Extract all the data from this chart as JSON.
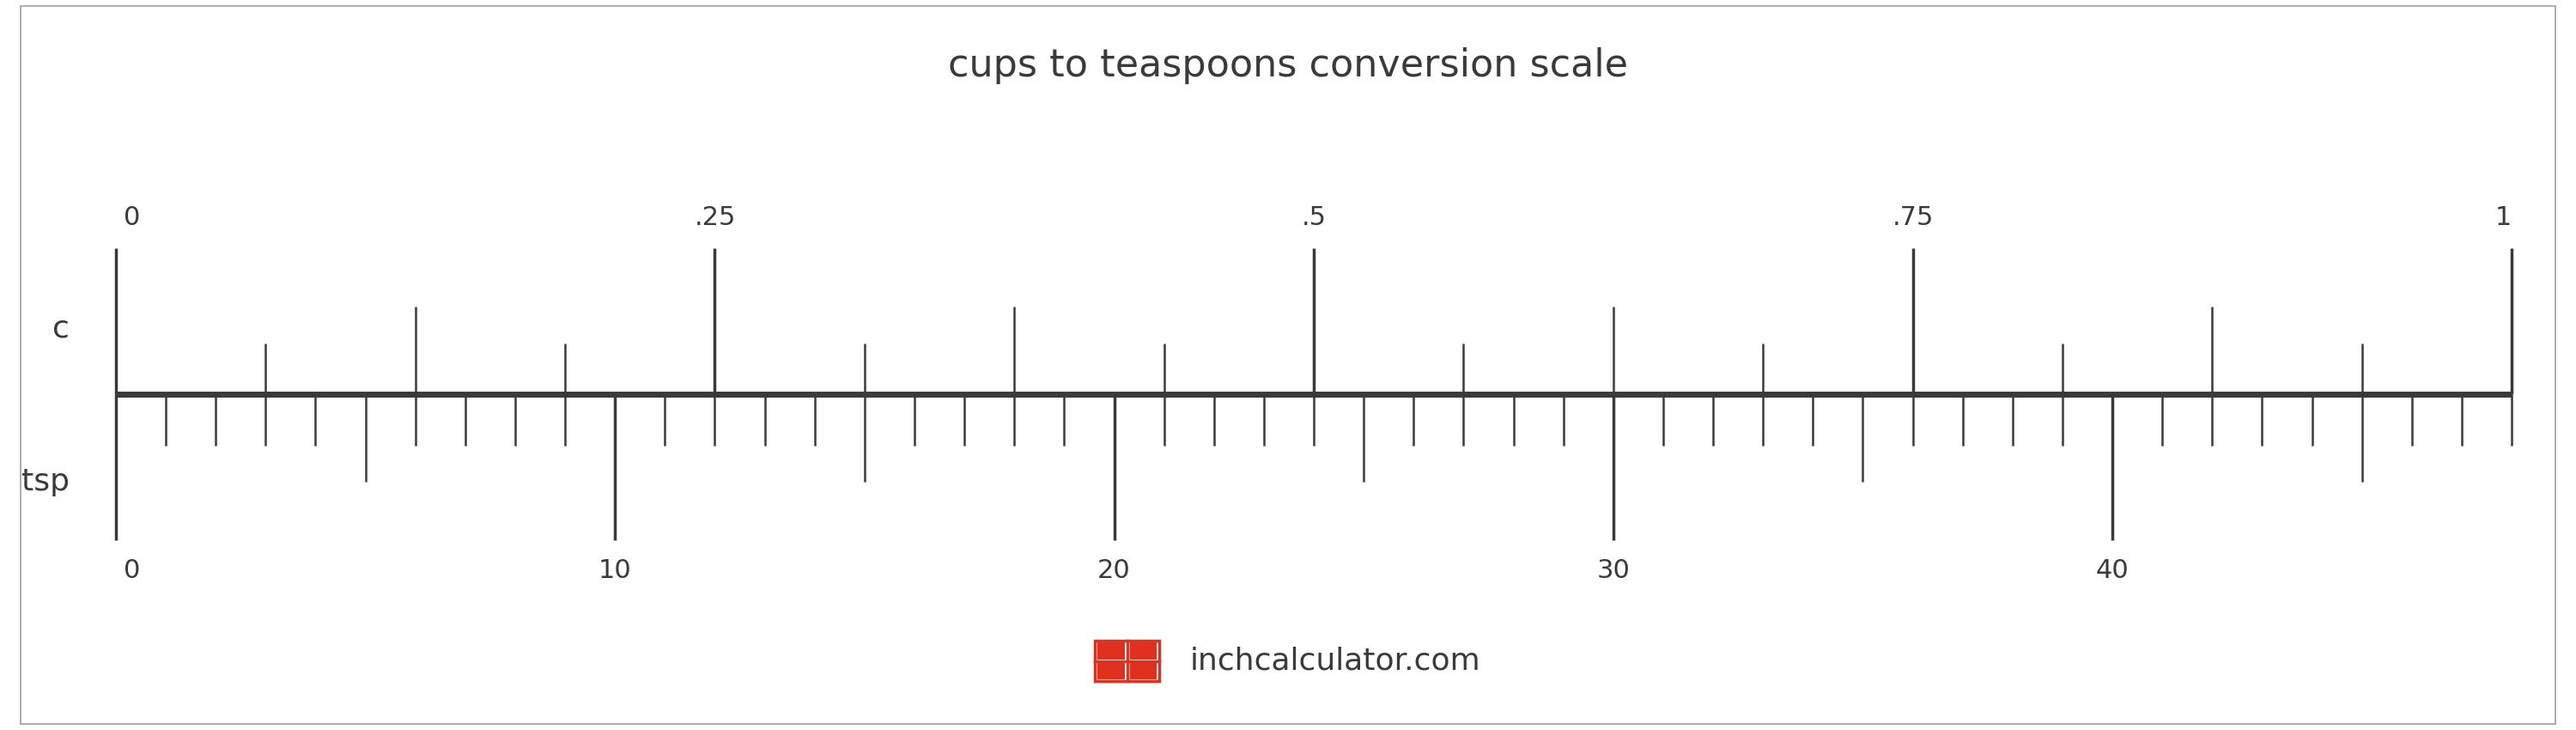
{
  "title": "cups to teaspoons conversion scale",
  "title_fontsize": 32,
  "title_color": "#3a3a3a",
  "background_color": "#ffffff",
  "border_color": "#b0b0b0",
  "scale_color": "#3a3a3a",
  "cups_major_ticks": [
    0,
    0.25,
    0.5,
    0.75,
    1.0
  ],
  "cups_major_labels": [
    "0",
    ".25",
    ".5",
    ".75",
    "1"
  ],
  "tsp_major_ticks": [
    0,
    10,
    20,
    30,
    40
  ],
  "tsp_major_labels": [
    "0",
    "10",
    "20",
    "30",
    "40"
  ],
  "tsp_max": 48,
  "label_c": "c",
  "label_tsp": "tsp",
  "label_fontsize": 26,
  "tick_label_fontsize": 22,
  "logo_text": "inchcalculator.com",
  "logo_fontsize": 26,
  "logo_color": "#3a3a3a",
  "logo_icon_color": "#e03020"
}
